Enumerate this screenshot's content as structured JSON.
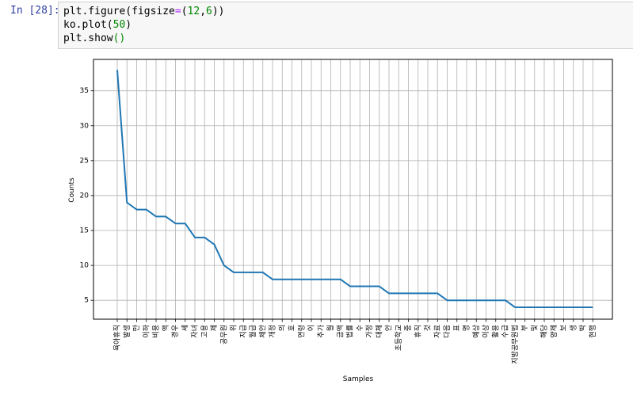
{
  "cell": {
    "prompt": "In [28]:",
    "code": {
      "line1": {
        "pre": "plt.figure(figsize",
        "op": "=",
        "open": "(",
        "n1": "12",
        "comma": ",",
        "n2": "6",
        "close": "))"
      },
      "line2": {
        "pre": "ko.plot(",
        "n": "50",
        "close": ")"
      },
      "line3": {
        "pre": "plt.show",
        "paren": "()"
      }
    }
  },
  "chart_data": {
    "type": "line",
    "xlabel": "Samples",
    "ylabel": "Counts",
    "yticks": [
      5,
      10,
      15,
      20,
      25,
      30,
      35
    ],
    "ylim": [
      2.3,
      39.5
    ],
    "grid": true,
    "line_color": "#1f77b4",
    "categories": [
      "육아휴직",
      "발생",
      "만",
      "이하",
      "비용",
      "액",
      "경우",
      "세",
      "자녀",
      "고용",
      "제",
      "공무원",
      "위",
      "지급",
      "월급",
      "제안",
      "개정",
      "의",
      "호",
      "연령",
      "이",
      "추가",
      "월",
      "금액",
      "법률",
      "수",
      "가정",
      "대체",
      "안",
      "초등학교",
      "중",
      "휴직",
      "것",
      "자료",
      "다음",
      "표",
      "명",
      "예상",
      "이상",
      "활용",
      "수급",
      "지방공무원법",
      "부",
      "및",
      "해당",
      "양제",
      "보",
      "생",
      "박",
      "현행"
    ],
    "values": [
      38,
      19,
      18,
      18,
      17,
      17,
      16,
      16,
      14,
      14,
      13,
      10,
      9,
      9,
      9,
      9,
      8,
      8,
      8,
      8,
      8,
      8,
      8,
      8,
      7,
      7,
      7,
      7,
      6,
      6,
      6,
      6,
      6,
      6,
      5,
      5,
      5,
      5,
      5,
      5,
      5,
      4,
      4,
      4,
      4,
      4,
      4,
      4,
      4,
      4
    ]
  }
}
